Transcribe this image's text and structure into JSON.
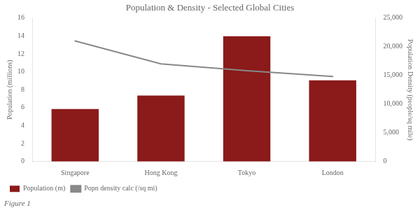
{
  "chart_data": {
    "type": "bar",
    "title": "Population & Density - Selected Global Cities",
    "annotations": [
      "Figure 1"
    ],
    "categories": [
      "Singapore",
      "Hong Kong",
      "Tokyo",
      "London"
    ],
    "series": [
      {
        "name": "Population (m)",
        "type": "bar",
        "color": "#8B1A1A",
        "values": [
          5.85,
          7.35,
          13.96,
          9.05
        ]
      },
      {
        "name": "Popn density calc (/sq mi)",
        "type": "line",
        "color": "#888888",
        "axis": "y2",
        "values": [
          21000,
          17000,
          15800,
          14800
        ]
      }
    ],
    "ylabel": "Population (millions)",
    "y2label": "Population Density (people/sq mile)",
    "ylim": [
      0,
      16
    ],
    "yticks": [
      0,
      2,
      4,
      6,
      8,
      10,
      12,
      14,
      16
    ],
    "y2lim": [
      0,
      25000
    ],
    "y2ticks": [
      0,
      {
        "value": 5000,
        "label": "5,000"
      },
      {
        "value": 10000,
        "label": "10,000"
      },
      {
        "value": 15000,
        "label": "15,000"
      },
      {
        "value": 20000,
        "label": "20,000"
      },
      {
        "value": 25000,
        "label": "25,000"
      }
    ],
    "grid": false,
    "legend": "lower left"
  }
}
